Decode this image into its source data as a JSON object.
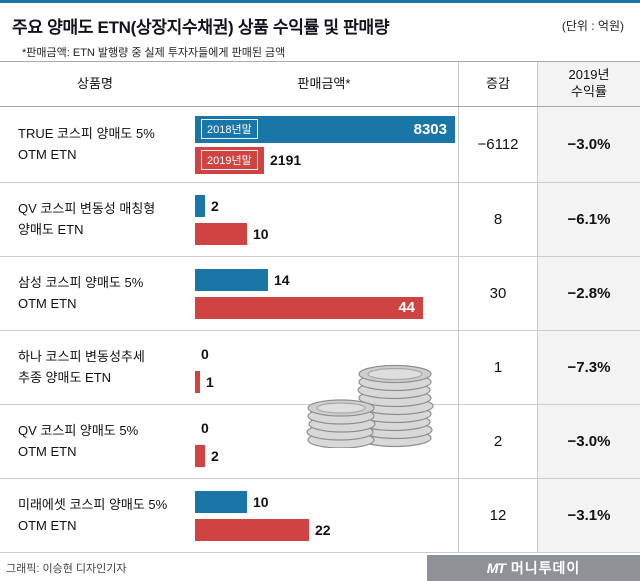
{
  "colors": {
    "accent": "#1b76a8",
    "shade": "#f3f3f3",
    "footer_gray": "#8e9297"
  },
  "header": {
    "title": "주요 양매도 ETN(상장지수채권) 상품 수익률 및 판매량",
    "unit": "(단위 : 억원)",
    "note": "*판매금액: ETN 발행량 중 실제 투자자들에게 판매된 금액"
  },
  "table": {
    "columns": [
      "상품명",
      "판매금액*",
      "증감"
    ],
    "return_header": [
      "2019년",
      "수익률"
    ]
  },
  "chart_data": {
    "type": "bar",
    "title": "주요 양매도 ETN(상장지수채권) 상품 수익률 및 판매량",
    "unit": "억원",
    "legend": [
      "2018년말",
      "2019년말"
    ],
    "series_colors": [
      "#1b76a8",
      "#cf4343"
    ],
    "rows": [
      {
        "name_lines": [
          "TRUE 코스피 양매도 5%",
          "OTM ETN"
        ],
        "values": [
          8303,
          2191
        ],
        "change": "−6112",
        "return": "−3.0%"
      },
      {
        "name_lines": [
          "QV 코스피 변동성 매칭형",
          "양매도 ETN"
        ],
        "values": [
          2,
          10
        ],
        "change": "8",
        "return": "−6.1%"
      },
      {
        "name_lines": [
          "삼성 코스피 양매도 5%",
          "OTM ETN"
        ],
        "values": [
          14,
          44
        ],
        "change": "30",
        "return": "−2.8%"
      },
      {
        "name_lines": [
          "하나 코스피 변동성추세",
          "추종 양매도 ETN"
        ],
        "values": [
          0,
          1
        ],
        "change": "1",
        "return": "−7.3%"
      },
      {
        "name_lines": [
          "QV 코스피 양매도 5%",
          "OTM ETN"
        ],
        "values": [
          0,
          2
        ],
        "change": "2",
        "return": "−3.0%"
      },
      {
        "name_lines": [
          "미래에셋 코스피 양매도 5%",
          "OTM ETN"
        ],
        "values": [
          10,
          22
        ],
        "change": "12",
        "return": "−3.1%"
      }
    ]
  },
  "footer": {
    "credit": "그래픽: 이승현 디자인기자",
    "logo_mark": "MT",
    "logo_text": "머니투데이"
  }
}
